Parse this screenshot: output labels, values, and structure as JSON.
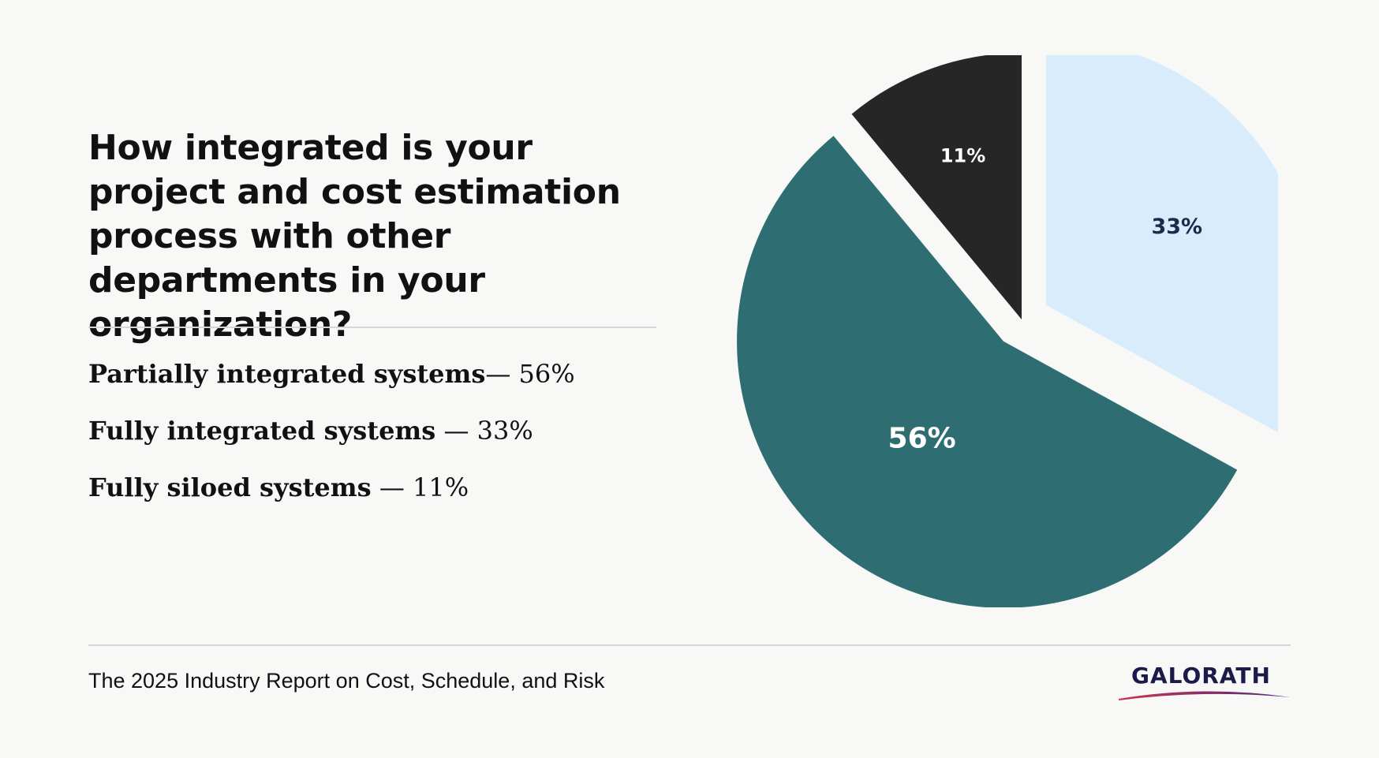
{
  "question": "How integrated is your project and cost estimation process with other departments in your organization?",
  "legend": [
    {
      "label": "Partially integrated systems",
      "value": "— 56%"
    },
    {
      "label": "Fully integrated systems",
      "value": " — 33%"
    },
    {
      "label": "Fully siloed systems",
      "value": " — 11%"
    }
  ],
  "footer": {
    "report_title": "The 2025 Industry Report on Cost, Schedule, and Risk",
    "logo_text": "GALORATH"
  },
  "chart_data": {
    "type": "pie",
    "title": "How integrated is your project and cost estimation process with other departments in your organization?",
    "categories": [
      "Fully integrated systems",
      "Partially integrated systems",
      "Fully siloed systems"
    ],
    "values": [
      33,
      56,
      11
    ],
    "labels": [
      "33%",
      "56%",
      "11%"
    ],
    "colors": [
      "#d9ecfb",
      "#2e6e73",
      "#262626"
    ],
    "label_colors": [
      "#1b2b4a",
      "#ffffff",
      "#ffffff"
    ],
    "exploded": [
      true,
      true,
      false
    ]
  },
  "colors": {
    "background": "#f8f8f7",
    "text": "#111111",
    "divider": "#d6d6d6",
    "logo_text": "#1c1a4a",
    "logo_swoosh_start": "#c9364f",
    "logo_swoosh_end": "#4a2a7a"
  }
}
